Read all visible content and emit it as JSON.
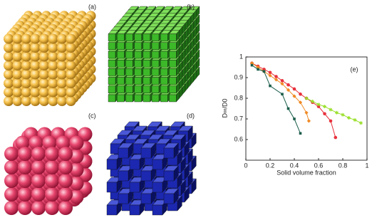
{
  "panel_labels": [
    "(a)",
    "(b)",
    "(c)",
    "(d)"
  ],
  "chart_data": {
    "type": "line",
    "annotation": "(e)",
    "xlabel": "Solid volume fraction",
    "ylabel": "D∞/D0",
    "xlim": [
      0,
      1
    ],
    "ylim": [
      0.5,
      1
    ],
    "xticks": [
      0,
      0.2,
      0.4,
      0.6,
      0.8,
      1
    ],
    "yticks": [
      0.6,
      0.7,
      0.8,
      0.9,
      1
    ],
    "series": [
      {
        "color": "#e8323c",
        "marker": "circle",
        "x": [
          0.05,
          0.1,
          0.15,
          0.2,
          0.25,
          0.3,
          0.35,
          0.4,
          0.45,
          0.5,
          0.55,
          0.6,
          0.65,
          0.7,
          0.74
        ],
        "values": [
          0.97,
          0.955,
          0.94,
          0.925,
          0.905,
          0.885,
          0.865,
          0.845,
          0.82,
          0.8,
          0.78,
          0.76,
          0.725,
          0.69,
          0.61
        ]
      },
      {
        "color": "#f08a24",
        "marker": "diamond",
        "x": [
          0.05,
          0.1,
          0.15,
          0.2,
          0.25,
          0.3,
          0.35,
          0.4,
          0.45,
          0.5,
          0.52
        ],
        "values": [
          0.97,
          0.95,
          0.93,
          0.91,
          0.89,
          0.87,
          0.84,
          0.81,
          0.78,
          0.73,
          0.69
        ]
      },
      {
        "color": "#1a5c4a",
        "marker": "square",
        "x": [
          0.05,
          0.1,
          0.15,
          0.2,
          0.3,
          0.35,
          0.4,
          0.45
        ],
        "values": [
          0.96,
          0.94,
          0.93,
          0.86,
          0.82,
          0.75,
          0.7,
          0.63
        ]
      },
      {
        "color": "#9be02d",
        "marker": "star",
        "x": [
          0.5,
          0.55,
          0.6,
          0.65,
          0.7,
          0.75,
          0.8,
          0.85,
          0.9,
          0.95
        ],
        "values": [
          0.8,
          0.785,
          0.77,
          0.76,
          0.745,
          0.73,
          0.72,
          0.705,
          0.695,
          0.68
        ]
      }
    ]
  }
}
